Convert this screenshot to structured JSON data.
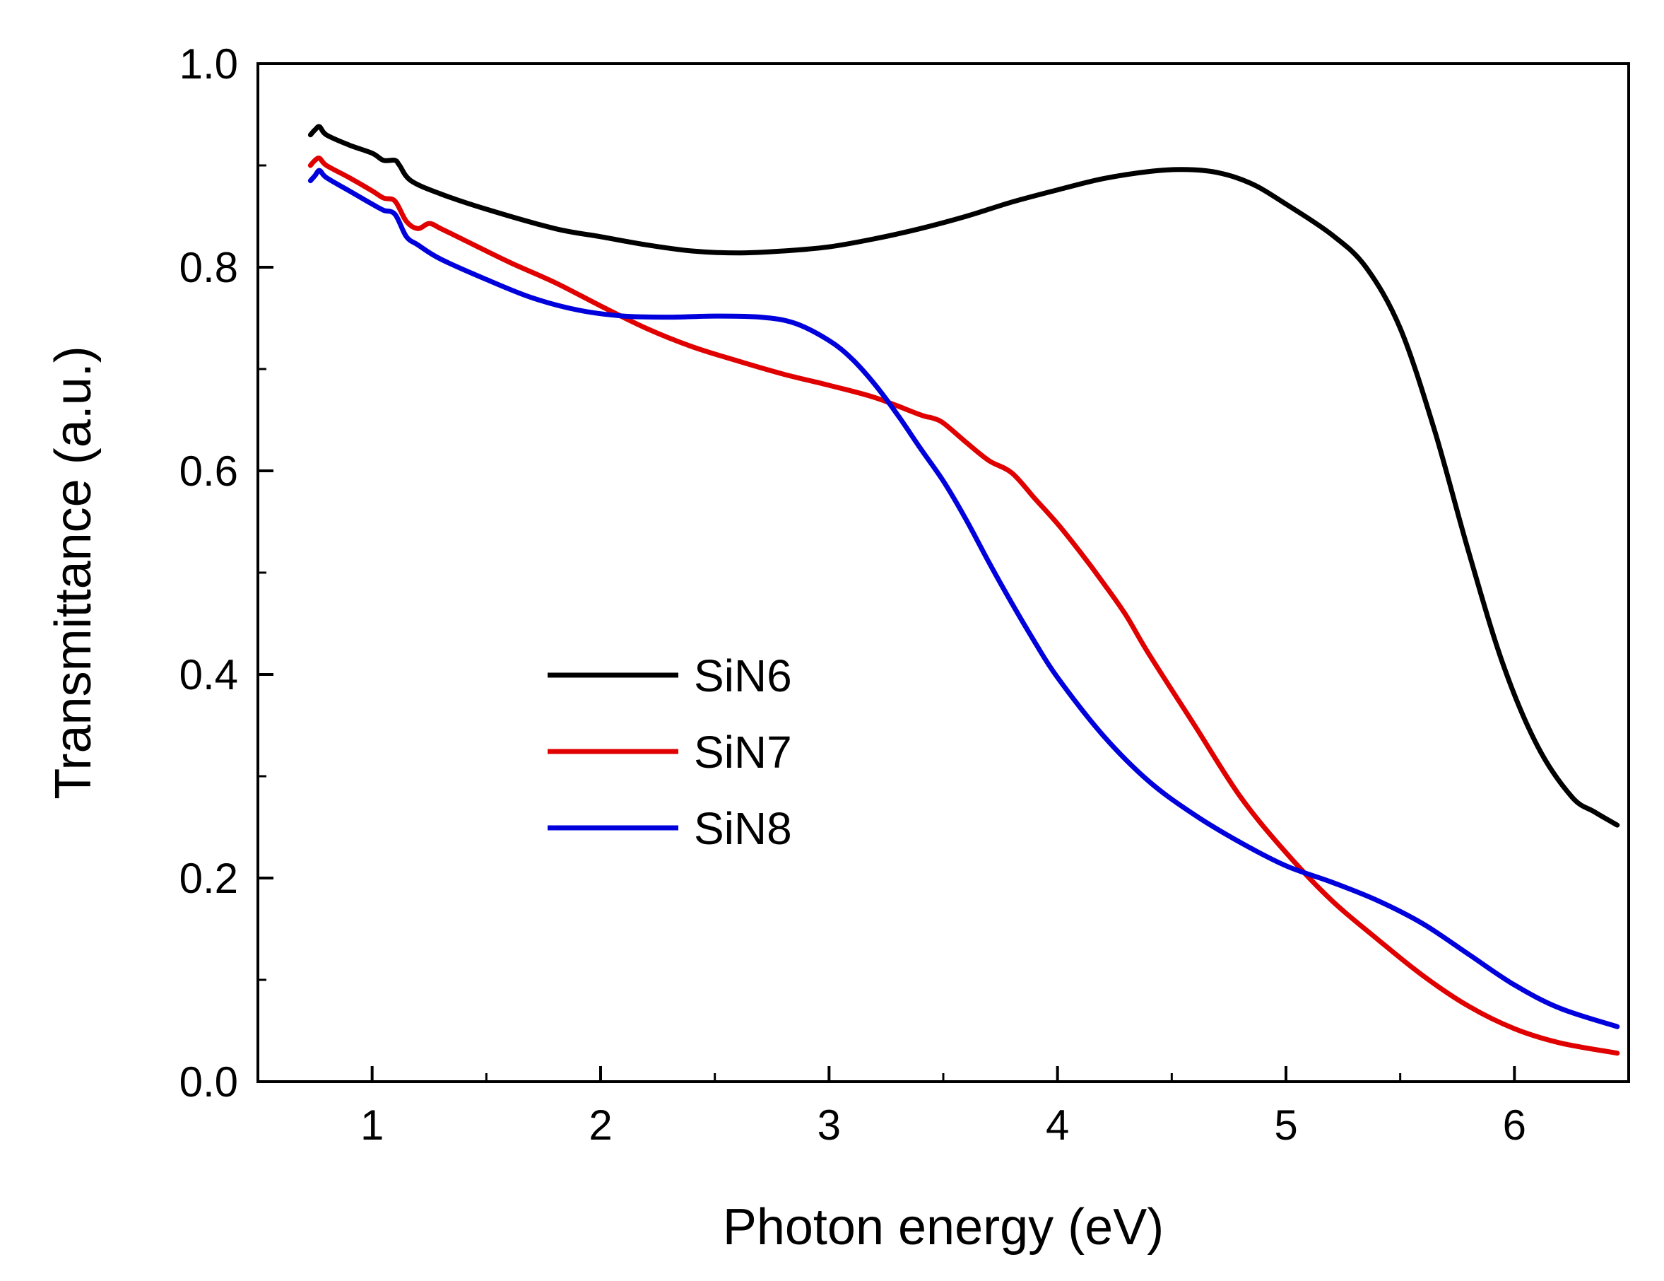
{
  "chart_data": {
    "type": "line",
    "title": "",
    "xlabel": "Photon energy (eV)",
    "ylabel": "Transmittance (a.u.)",
    "xlim": [
      0.5,
      6.5
    ],
    "ylim": [
      0.0,
      1.0
    ],
    "x_ticks": [
      1,
      2,
      3,
      4,
      5,
      6
    ],
    "x_tick_labels": [
      "1",
      "2",
      "3",
      "4",
      "5",
      "6"
    ],
    "y_ticks": [
      0.0,
      0.2,
      0.4,
      0.6,
      0.8,
      1.0
    ],
    "y_tick_labels": [
      "0.0",
      "0.2",
      "0.4",
      "0.6",
      "0.8",
      "1.0"
    ],
    "grid": false,
    "legend_position": "center-left",
    "series": [
      {
        "name": "SiN6",
        "color": "#000000",
        "points": [
          [
            0.73,
            0.93
          ],
          [
            0.75,
            0.935
          ],
          [
            0.77,
            0.938
          ],
          [
            0.8,
            0.93
          ],
          [
            0.9,
            0.92
          ],
          [
            1.0,
            0.912
          ],
          [
            1.05,
            0.905
          ],
          [
            1.1,
            0.905
          ],
          [
            1.12,
            0.9
          ],
          [
            1.17,
            0.885
          ],
          [
            1.3,
            0.872
          ],
          [
            1.5,
            0.857
          ],
          [
            1.8,
            0.838
          ],
          [
            2.0,
            0.83
          ],
          [
            2.2,
            0.822
          ],
          [
            2.4,
            0.816
          ],
          [
            2.6,
            0.814
          ],
          [
            2.8,
            0.816
          ],
          [
            3.0,
            0.82
          ],
          [
            3.2,
            0.828
          ],
          [
            3.4,
            0.838
          ],
          [
            3.6,
            0.85
          ],
          [
            3.8,
            0.864
          ],
          [
            4.0,
            0.876
          ],
          [
            4.2,
            0.887
          ],
          [
            4.4,
            0.894
          ],
          [
            4.55,
            0.896
          ],
          [
            4.7,
            0.893
          ],
          [
            4.85,
            0.882
          ],
          [
            5.0,
            0.862
          ],
          [
            5.2,
            0.832
          ],
          [
            5.35,
            0.8
          ],
          [
            5.5,
            0.74
          ],
          [
            5.65,
            0.64
          ],
          [
            5.8,
            0.52
          ],
          [
            5.95,
            0.41
          ],
          [
            6.1,
            0.33
          ],
          [
            6.25,
            0.28
          ],
          [
            6.35,
            0.265
          ],
          [
            6.45,
            0.252
          ]
        ]
      },
      {
        "name": "SiN7",
        "color": "#e00000",
        "points": [
          [
            0.73,
            0.9
          ],
          [
            0.75,
            0.905
          ],
          [
            0.77,
            0.907
          ],
          [
            0.8,
            0.9
          ],
          [
            0.9,
            0.888
          ],
          [
            1.0,
            0.875
          ],
          [
            1.05,
            0.868
          ],
          [
            1.1,
            0.865
          ],
          [
            1.15,
            0.845
          ],
          [
            1.2,
            0.838
          ],
          [
            1.25,
            0.843
          ],
          [
            1.3,
            0.838
          ],
          [
            1.4,
            0.827
          ],
          [
            1.6,
            0.805
          ],
          [
            1.8,
            0.785
          ],
          [
            2.0,
            0.762
          ],
          [
            2.2,
            0.74
          ],
          [
            2.4,
            0.722
          ],
          [
            2.6,
            0.708
          ],
          [
            2.8,
            0.695
          ],
          [
            3.0,
            0.684
          ],
          [
            3.2,
            0.672
          ],
          [
            3.4,
            0.655
          ],
          [
            3.45,
            0.652
          ],
          [
            3.5,
            0.647
          ],
          [
            3.6,
            0.628
          ],
          [
            3.7,
            0.61
          ],
          [
            3.8,
            0.598
          ],
          [
            3.9,
            0.573
          ],
          [
            4.0,
            0.548
          ],
          [
            4.1,
            0.52
          ],
          [
            4.2,
            0.49
          ],
          [
            4.3,
            0.458
          ],
          [
            4.4,
            0.42
          ],
          [
            4.6,
            0.35
          ],
          [
            4.8,
            0.28
          ],
          [
            5.0,
            0.225
          ],
          [
            5.2,
            0.178
          ],
          [
            5.4,
            0.14
          ],
          [
            5.6,
            0.104
          ],
          [
            5.8,
            0.074
          ],
          [
            6.0,
            0.052
          ],
          [
            6.2,
            0.038
          ],
          [
            6.45,
            0.028
          ]
        ]
      },
      {
        "name": "SiN8",
        "color": "#0000dd",
        "points": [
          [
            0.73,
            0.885
          ],
          [
            0.75,
            0.89
          ],
          [
            0.77,
            0.895
          ],
          [
            0.8,
            0.888
          ],
          [
            0.9,
            0.875
          ],
          [
            1.0,
            0.862
          ],
          [
            1.05,
            0.856
          ],
          [
            1.1,
            0.852
          ],
          [
            1.15,
            0.83
          ],
          [
            1.2,
            0.822
          ],
          [
            1.3,
            0.808
          ],
          [
            1.5,
            0.788
          ],
          [
            1.7,
            0.77
          ],
          [
            1.9,
            0.758
          ],
          [
            2.1,
            0.752
          ],
          [
            2.3,
            0.751
          ],
          [
            2.5,
            0.752
          ],
          [
            2.7,
            0.751
          ],
          [
            2.85,
            0.745
          ],
          [
            3.0,
            0.728
          ],
          [
            3.1,
            0.71
          ],
          [
            3.2,
            0.685
          ],
          [
            3.3,
            0.655
          ],
          [
            3.4,
            0.622
          ],
          [
            3.5,
            0.59
          ],
          [
            3.6,
            0.552
          ],
          [
            3.7,
            0.51
          ],
          [
            3.8,
            0.47
          ],
          [
            3.9,
            0.432
          ],
          [
            4.0,
            0.397
          ],
          [
            4.2,
            0.34
          ],
          [
            4.4,
            0.295
          ],
          [
            4.6,
            0.262
          ],
          [
            4.8,
            0.235
          ],
          [
            5.0,
            0.212
          ],
          [
            5.2,
            0.196
          ],
          [
            5.4,
            0.178
          ],
          [
            5.6,
            0.155
          ],
          [
            5.8,
            0.125
          ],
          [
            6.0,
            0.095
          ],
          [
            6.2,
            0.072
          ],
          [
            6.45,
            0.054
          ]
        ]
      }
    ]
  }
}
